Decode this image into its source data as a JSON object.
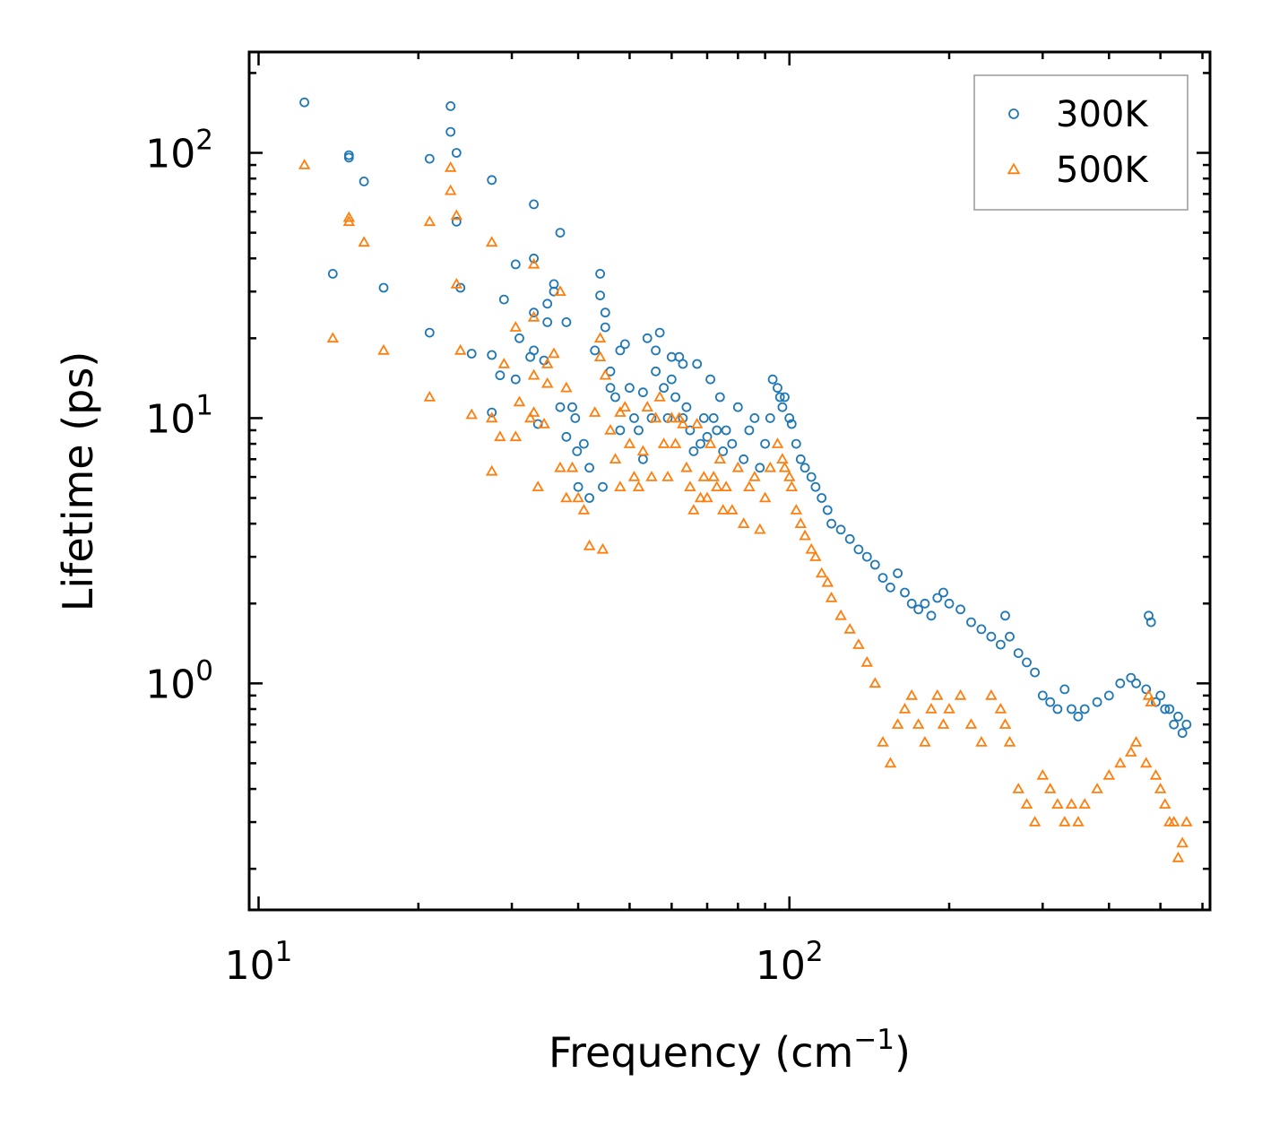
{
  "chart_data": {
    "type": "scatter",
    "x_scale": "log",
    "y_scale": "log",
    "xlim": [
      9.6,
      620
    ],
    "ylim": [
      0.14,
      240
    ],
    "xlabel": "Frequency (cm",
    "xlabel_sup": "−1",
    "xlabel_end": ")",
    "ylabel": "Lifetime (ps)",
    "x_ticks": [
      {
        "value": 10,
        "base": "10",
        "exp": "1"
      },
      {
        "value": 100,
        "base": "10",
        "exp": "2"
      }
    ],
    "y_ticks": [
      {
        "value": 1,
        "base": "10",
        "exp": "0"
      },
      {
        "value": 10,
        "base": "10",
        "exp": "1"
      },
      {
        "value": 100,
        "base": "10",
        "exp": "2"
      }
    ],
    "legend_position": "top-right",
    "series": [
      {
        "name": "300K",
        "color": "#1f77b4",
        "marker": "circle-open",
        "points": [
          [
            12.2,
            155
          ],
          [
            14.8,
            96
          ],
          [
            14.8,
            98
          ],
          [
            15.8,
            78
          ],
          [
            13.8,
            35
          ],
          [
            17.2,
            31
          ],
          [
            21,
            95
          ],
          [
            21,
            21
          ],
          [
            23,
            150
          ],
          [
            23,
            120
          ],
          [
            23.6,
            100
          ],
          [
            23.6,
            55
          ],
          [
            24,
            31
          ],
          [
            25.2,
            17.5
          ],
          [
            27.5,
            79
          ],
          [
            27.5,
            17.3
          ],
          [
            27.5,
            10.5
          ],
          [
            28.5,
            14.5
          ],
          [
            29,
            28
          ],
          [
            30.5,
            38
          ],
          [
            30.5,
            14
          ],
          [
            31,
            20
          ],
          [
            32.5,
            17
          ],
          [
            33,
            64
          ],
          [
            33,
            40
          ],
          [
            33,
            25
          ],
          [
            33,
            18
          ],
          [
            33.6,
            9.5
          ],
          [
            34.5,
            16.5
          ],
          [
            35,
            27
          ],
          [
            35,
            23
          ],
          [
            36,
            30
          ],
          [
            36,
            32
          ],
          [
            37,
            50
          ],
          [
            37,
            11
          ],
          [
            38,
            23
          ],
          [
            38,
            8.5
          ],
          [
            39,
            11
          ],
          [
            39.5,
            10
          ],
          [
            39.8,
            7.5
          ],
          [
            40,
            5.5
          ],
          [
            41,
            8
          ],
          [
            42,
            6.5
          ],
          [
            42,
            5
          ],
          [
            43,
            18
          ],
          [
            44,
            35
          ],
          [
            44,
            29
          ],
          [
            44.5,
            5.5
          ],
          [
            45,
            25
          ],
          [
            45,
            22
          ],
          [
            46,
            15
          ],
          [
            46,
            13
          ],
          [
            47,
            12
          ],
          [
            48,
            18
          ],
          [
            48,
            9
          ],
          [
            49,
            19
          ],
          [
            50,
            13
          ],
          [
            51,
            10
          ],
          [
            52,
            9
          ],
          [
            53,
            12.5
          ],
          [
            53,
            7
          ],
          [
            54,
            20
          ],
          [
            55,
            10
          ],
          [
            56,
            18
          ],
          [
            56,
            15
          ],
          [
            57,
            21
          ],
          [
            58,
            13
          ],
          [
            59,
            10
          ],
          [
            60,
            17
          ],
          [
            60,
            14
          ],
          [
            61,
            12
          ],
          [
            62,
            17
          ],
          [
            63,
            16
          ],
          [
            63,
            10
          ],
          [
            64,
            11
          ],
          [
            65,
            9
          ],
          [
            66,
            7.5
          ],
          [
            67,
            16
          ],
          [
            68,
            8
          ],
          [
            69,
            10
          ],
          [
            70,
            8.5
          ],
          [
            71,
            14
          ],
          [
            72,
            10
          ],
          [
            73,
            9
          ],
          [
            74,
            12
          ],
          [
            75,
            7.5
          ],
          [
            76,
            9
          ],
          [
            78,
            8
          ],
          [
            80,
            11
          ],
          [
            82,
            7
          ],
          [
            84,
            9
          ],
          [
            86,
            10
          ],
          [
            88,
            6.5
          ],
          [
            90,
            8
          ],
          [
            92,
            10
          ],
          [
            93,
            14
          ],
          [
            95,
            13
          ],
          [
            96,
            12
          ],
          [
            97,
            11
          ],
          [
            98,
            12
          ],
          [
            100,
            10
          ],
          [
            101,
            9.5
          ],
          [
            103,
            8
          ],
          [
            105,
            7
          ],
          [
            107,
            6.5
          ],
          [
            110,
            6
          ],
          [
            112,
            5.5
          ],
          [
            115,
            5
          ],
          [
            118,
            4.5
          ],
          [
            120,
            4
          ],
          [
            125,
            3.8
          ],
          [
            130,
            3.5
          ],
          [
            135,
            3.2
          ],
          [
            140,
            3
          ],
          [
            145,
            2.8
          ],
          [
            150,
            2.5
          ],
          [
            155,
            2.3
          ],
          [
            160,
            2.6
          ],
          [
            165,
            2.2
          ],
          [
            170,
            2
          ],
          [
            175,
            1.9
          ],
          [
            180,
            2
          ],
          [
            185,
            1.8
          ],
          [
            190,
            2.1
          ],
          [
            195,
            2.2
          ],
          [
            200,
            2
          ],
          [
            210,
            1.9
          ],
          [
            220,
            1.7
          ],
          [
            230,
            1.6
          ],
          [
            240,
            1.5
          ],
          [
            250,
            1.4
          ],
          [
            255,
            1.8
          ],
          [
            260,
            1.5
          ],
          [
            270,
            1.3
          ],
          [
            280,
            1.2
          ],
          [
            290,
            1.1
          ],
          [
            300,
            0.9
          ],
          [
            310,
            0.85
          ],
          [
            320,
            0.8
          ],
          [
            330,
            0.95
          ],
          [
            340,
            0.8
          ],
          [
            350,
            0.75
          ],
          [
            360,
            0.8
          ],
          [
            380,
            0.85
          ],
          [
            400,
            0.9
          ],
          [
            420,
            1
          ],
          [
            440,
            1.05
          ],
          [
            450,
            1
          ],
          [
            470,
            0.95
          ],
          [
            475,
            1.8
          ],
          [
            480,
            1.7
          ],
          [
            490,
            0.85
          ],
          [
            500,
            0.9
          ],
          [
            510,
            0.8
          ],
          [
            520,
            0.8
          ],
          [
            530,
            0.7
          ],
          [
            540,
            0.75
          ],
          [
            550,
            0.65
          ],
          [
            560,
            0.7
          ]
        ]
      },
      {
        "name": "500K",
        "color": "#ff7f0e",
        "marker": "triangle-open",
        "points": [
          [
            12.2,
            90
          ],
          [
            14.8,
            55
          ],
          [
            14.8,
            57
          ],
          [
            15.8,
            46
          ],
          [
            13.8,
            20
          ],
          [
            17.2,
            18
          ],
          [
            21,
            55
          ],
          [
            21,
            12
          ],
          [
            23,
            88
          ],
          [
            23,
            72
          ],
          [
            23.6,
            58
          ],
          [
            23.6,
            32
          ],
          [
            24,
            18
          ],
          [
            25.2,
            10.3
          ],
          [
            27.5,
            46
          ],
          [
            27.5,
            10
          ],
          [
            27.5,
            6.3
          ],
          [
            28.5,
            8.5
          ],
          [
            29,
            16
          ],
          [
            30.5,
            22
          ],
          [
            30.5,
            8.5
          ],
          [
            31,
            11.5
          ],
          [
            32.5,
            10
          ],
          [
            33,
            38
          ],
          [
            33,
            24
          ],
          [
            33,
            14.5
          ],
          [
            33,
            10.5
          ],
          [
            33.6,
            5.5
          ],
          [
            34.5,
            9.5
          ],
          [
            35,
            16
          ],
          [
            35,
            13.5
          ],
          [
            36,
            17.5
          ],
          [
            37,
            30
          ],
          [
            37,
            6.5
          ],
          [
            38,
            13
          ],
          [
            38,
            5
          ],
          [
            39,
            6.5
          ],
          [
            40,
            5
          ],
          [
            41,
            4.5
          ],
          [
            42,
            3.3
          ],
          [
            43,
            10.5
          ],
          [
            44,
            20
          ],
          [
            44,
            17
          ],
          [
            44.5,
            3.2
          ],
          [
            45,
            14.5
          ],
          [
            46,
            9
          ],
          [
            47,
            7
          ],
          [
            48,
            10.5
          ],
          [
            48,
            5.5
          ],
          [
            49,
            11
          ],
          [
            50,
            8
          ],
          [
            51,
            6
          ],
          [
            52,
            5.5
          ],
          [
            53,
            7.5
          ],
          [
            54,
            11
          ],
          [
            55,
            6
          ],
          [
            56,
            10
          ],
          [
            57,
            12
          ],
          [
            58,
            8
          ],
          [
            59,
            6
          ],
          [
            60,
            10
          ],
          [
            61,
            8
          ],
          [
            62,
            10
          ],
          [
            63,
            9.5
          ],
          [
            64,
            6.5
          ],
          [
            65,
            5.5
          ],
          [
            66,
            4.5
          ],
          [
            67,
            9.5
          ],
          [
            68,
            5
          ],
          [
            69,
            6
          ],
          [
            70,
            5
          ],
          [
            71,
            8
          ],
          [
            72,
            6
          ],
          [
            73,
            5.5
          ],
          [
            74,
            7
          ],
          [
            75,
            4.5
          ],
          [
            76,
            5.5
          ],
          [
            78,
            4.5
          ],
          [
            80,
            6.5
          ],
          [
            82,
            4
          ],
          [
            84,
            5.5
          ],
          [
            86,
            6
          ],
          [
            88,
            3.8
          ],
          [
            90,
            5
          ],
          [
            92,
            6.5
          ],
          [
            95,
            8
          ],
          [
            97,
            7
          ],
          [
            98,
            6.5
          ],
          [
            100,
            6
          ],
          [
            101,
            5.5
          ],
          [
            103,
            4.5
          ],
          [
            105,
            4
          ],
          [
            107,
            3.6
          ],
          [
            110,
            3.2
          ],
          [
            112,
            3
          ],
          [
            115,
            2.6
          ],
          [
            118,
            2.4
          ],
          [
            120,
            2.1
          ],
          [
            125,
            1.8
          ],
          [
            130,
            1.6
          ],
          [
            135,
            1.4
          ],
          [
            140,
            1.2
          ],
          [
            145,
            1
          ],
          [
            150,
            0.6
          ],
          [
            155,
            0.5
          ],
          [
            160,
            0.7
          ],
          [
            165,
            0.8
          ],
          [
            170,
            0.9
          ],
          [
            175,
            0.7
          ],
          [
            180,
            0.6
          ],
          [
            185,
            0.8
          ],
          [
            190,
            0.9
          ],
          [
            195,
            0.7
          ],
          [
            200,
            0.8
          ],
          [
            210,
            0.9
          ],
          [
            220,
            0.7
          ],
          [
            230,
            0.6
          ],
          [
            240,
            0.9
          ],
          [
            250,
            0.8
          ],
          [
            255,
            0.7
          ],
          [
            260,
            0.6
          ],
          [
            270,
            0.4
          ],
          [
            280,
            0.35
          ],
          [
            290,
            0.3
          ],
          [
            300,
            0.45
          ],
          [
            310,
            0.4
          ],
          [
            320,
            0.35
          ],
          [
            330,
            0.3
          ],
          [
            340,
            0.35
          ],
          [
            350,
            0.3
          ],
          [
            360,
            0.35
          ],
          [
            380,
            0.4
          ],
          [
            400,
            0.45
          ],
          [
            420,
            0.5
          ],
          [
            440,
            0.55
          ],
          [
            450,
            0.6
          ],
          [
            470,
            0.5
          ],
          [
            475,
            0.9
          ],
          [
            480,
            0.85
          ],
          [
            490,
            0.45
          ],
          [
            500,
            0.4
          ],
          [
            510,
            0.35
          ],
          [
            520,
            0.3
          ],
          [
            530,
            0.3
          ],
          [
            540,
            0.22
          ],
          [
            550,
            0.25
          ],
          [
            560,
            0.3
          ]
        ]
      }
    ]
  }
}
